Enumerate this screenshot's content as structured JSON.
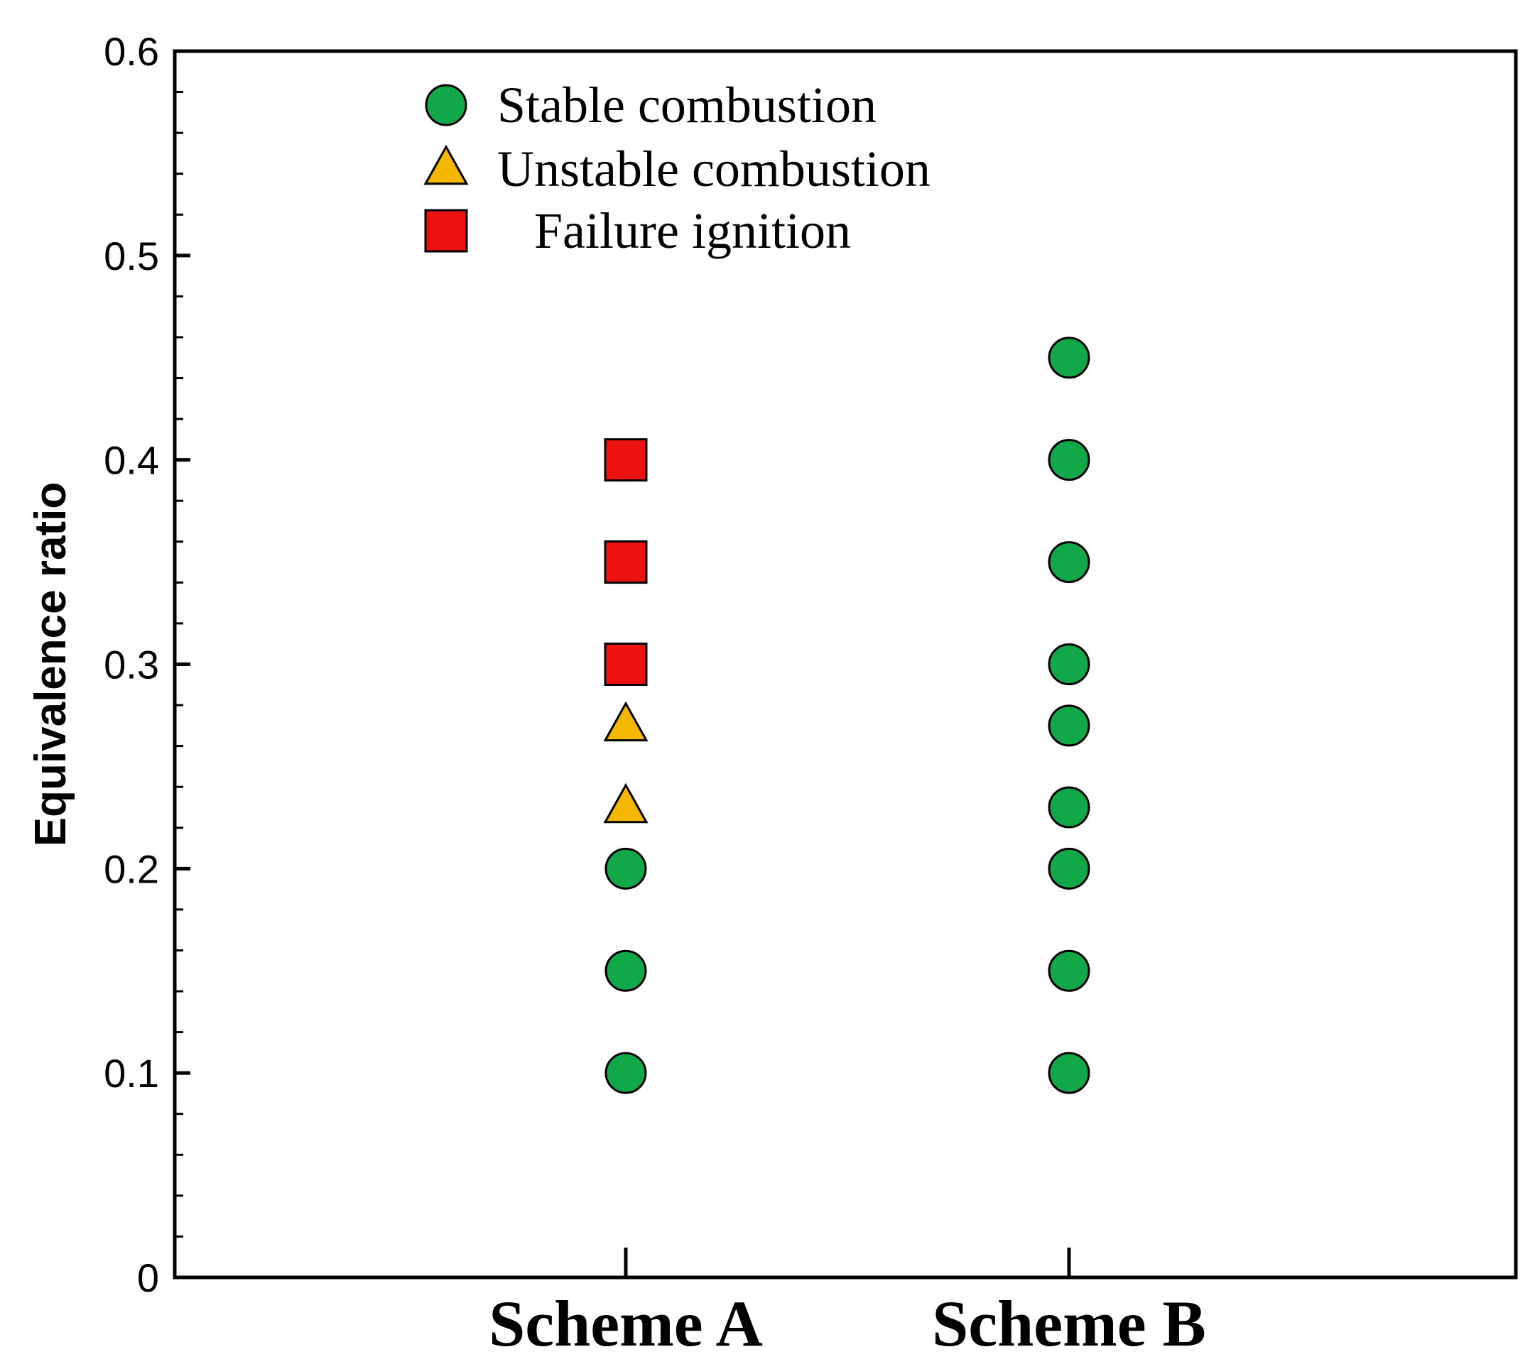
{
  "chart_data": {
    "type": "scatter",
    "title": "",
    "xlabel": "",
    "ylabel": "Equivalence ratio",
    "ylim": [
      0,
      0.6
    ],
    "y_ticks": [
      "0",
      "0.1",
      "0.2",
      "0.3",
      "0.4",
      "0.5",
      "0.6"
    ],
    "categories": [
      "Scheme A",
      "Scheme B"
    ],
    "legend": {
      "placement": "top-left",
      "entries": [
        {
          "key": "stable",
          "label": "Stable combustion",
          "marker": "circle",
          "color": "#12a84a"
        },
        {
          "key": "unstable",
          "label": "Unstable combustion",
          "marker": "triangle",
          "color": "#f5b800"
        },
        {
          "key": "failure",
          "label": "Failure ignition",
          "marker": "square",
          "color": "#ee1111"
        }
      ]
    },
    "series": [
      {
        "name": "Stable combustion",
        "key": "stable",
        "points": [
          {
            "category": "Scheme A",
            "y": 0.1
          },
          {
            "category": "Scheme A",
            "y": 0.15
          },
          {
            "category": "Scheme A",
            "y": 0.2
          },
          {
            "category": "Scheme B",
            "y": 0.1
          },
          {
            "category": "Scheme B",
            "y": 0.15
          },
          {
            "category": "Scheme B",
            "y": 0.2
          },
          {
            "category": "Scheme B",
            "y": 0.23
          },
          {
            "category": "Scheme B",
            "y": 0.27
          },
          {
            "category": "Scheme B",
            "y": 0.3
          },
          {
            "category": "Scheme B",
            "y": 0.35
          },
          {
            "category": "Scheme B",
            "y": 0.4
          },
          {
            "category": "Scheme B",
            "y": 0.45
          }
        ]
      },
      {
        "name": "Unstable combustion",
        "key": "unstable",
        "points": [
          {
            "category": "Scheme A",
            "y": 0.23
          },
          {
            "category": "Scheme A",
            "y": 0.27
          }
        ]
      },
      {
        "name": "Failure ignition",
        "key": "failure",
        "points": [
          {
            "category": "Scheme A",
            "y": 0.3
          },
          {
            "category": "Scheme A",
            "y": 0.35
          },
          {
            "category": "Scheme A",
            "y": 0.4
          }
        ]
      }
    ]
  }
}
